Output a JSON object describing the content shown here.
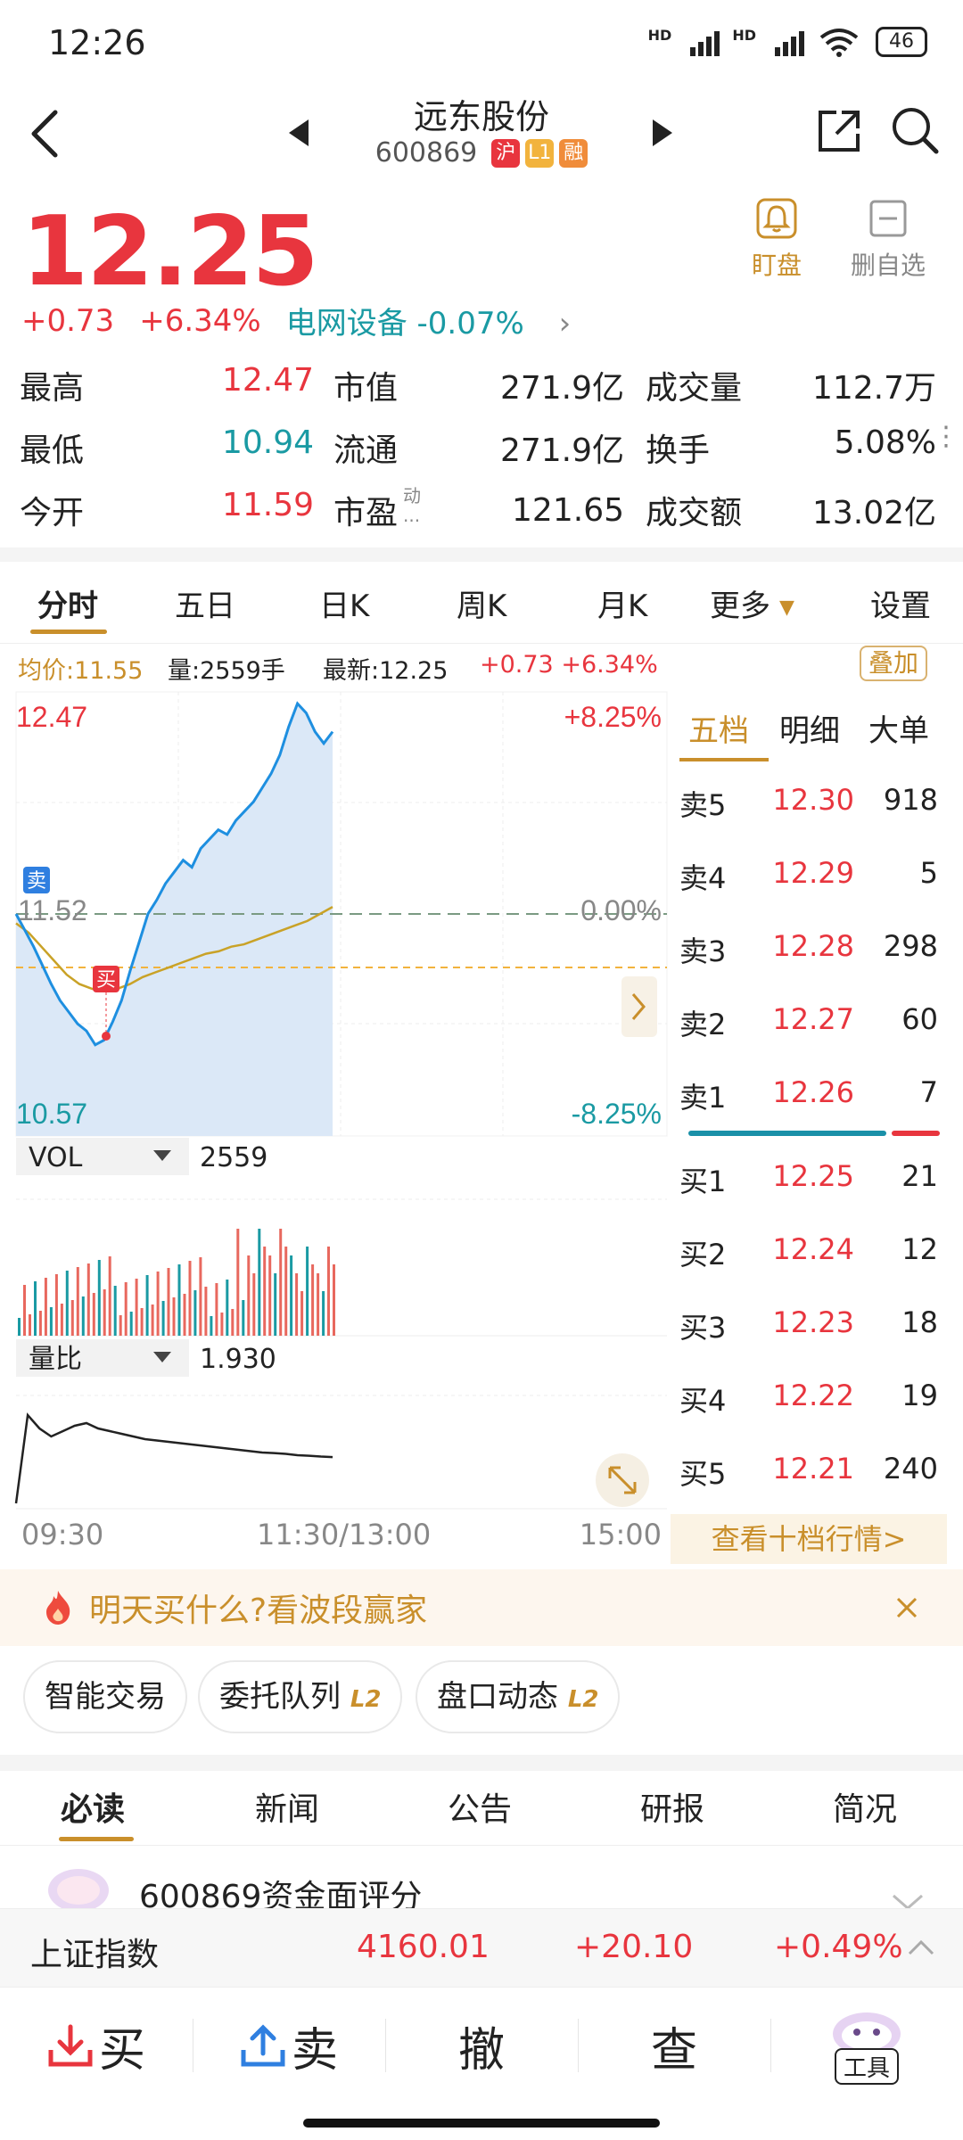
{
  "status_bar": {
    "time": "12:26",
    "network_1": "HD",
    "network_2": "HD",
    "battery": "46"
  },
  "header": {
    "stock_name": "远东股份",
    "stock_code": "600869",
    "tags": [
      {
        "text": "沪",
        "color": "#e8353e"
      },
      {
        "text": "L1",
        "color": "#f2b33d"
      },
      {
        "text": "融",
        "color": "#f08c3a"
      }
    ]
  },
  "quote": {
    "price": "12.25",
    "change": "+0.73",
    "change_pct": "+6.34%",
    "sector": "电网设备 -0.07%",
    "watch_label": "盯盘",
    "remove_label": "删自选"
  },
  "stats": [
    [
      {
        "label": "最高",
        "value": "12.47",
        "color": "red"
      },
      {
        "label": "市值",
        "value": "271.9亿"
      },
      {
        "label": "成交量",
        "value": "112.7万"
      }
    ],
    [
      {
        "label": "最低",
        "value": "10.94",
        "color": "green"
      },
      {
        "label": "流通",
        "value": "271.9亿"
      },
      {
        "label": "换手",
        "value": "5.08%"
      }
    ],
    [
      {
        "label": "今开",
        "value": "11.59",
        "color": "red"
      },
      {
        "label": "市盈",
        "value": "121.65",
        "sup": "动",
        "sub": "..."
      },
      {
        "label": "成交额",
        "value": "13.02亿"
      }
    ]
  ],
  "chart_tabs": [
    "分时",
    "五日",
    "日K",
    "周K",
    "月K",
    "更多",
    "设置"
  ],
  "chart_info": {
    "avg": "均价:11.55",
    "vol": "量:2559手",
    "latest": "最新:12.25",
    "change": "+0.73 +6.34%",
    "overlay": "叠加",
    "y_high": "12.47",
    "y_mid": "11.52",
    "y_low": "10.57",
    "pct_high": "+8.25%",
    "pct_mid": "0.00%",
    "pct_low": "-8.25%",
    "sell_marker": "卖",
    "buy_marker": "买",
    "vol_label": "VOL",
    "vol_value": "2559",
    "ratio_label": "量比",
    "ratio_value": "1.930",
    "time_start": "09:30",
    "time_mid": "11:30/13:00",
    "time_end": "15:00"
  },
  "chart_data": {
    "type": "line",
    "x_range": [
      "09:30",
      "15:00"
    ],
    "ylim": [
      10.57,
      12.47
    ],
    "reference": 11.52,
    "series": [
      {
        "name": "",
        "values": [
          11.52,
          11.45,
          11.38,
          11.3,
          11.22,
          11.15,
          11.1,
          11.05,
          11.02,
          10.96,
          10.98,
          11.06,
          11.15,
          11.28,
          11.4,
          11.52,
          11.58,
          11.65,
          11.7,
          11.75,
          11.72,
          11.8,
          11.84,
          11.88,
          11.86,
          11.92,
          11.96,
          12.0,
          12.06,
          12.12,
          12.2,
          12.32,
          12.42,
          12.38,
          12.3,
          12.25,
          12.3
        ]
      },
      {
        "name": "",
        "values": [
          11.48,
          11.44,
          11.38,
          11.32,
          11.26,
          11.22,
          11.2,
          11.19,
          11.2,
          11.22,
          11.25,
          11.27,
          11.29,
          11.31,
          11.33,
          11.35,
          11.36,
          11.38,
          11.39,
          11.41,
          11.43,
          11.45,
          11.47,
          11.49,
          11.52,
          11.55
        ]
      }
    ]
  },
  "order_book": {
    "tabs": [
      "五档",
      "明细",
      "大单"
    ],
    "asks": [
      {
        "label": "卖5",
        "price": "12.30",
        "vol": "918"
      },
      {
        "label": "卖4",
        "price": "12.29",
        "vol": "5"
      },
      {
        "label": "卖3",
        "price": "12.28",
        "vol": "298"
      },
      {
        "label": "卖2",
        "price": "12.27",
        "vol": "60"
      },
      {
        "label": "卖1",
        "price": "12.26",
        "vol": "7"
      }
    ],
    "bids": [
      {
        "label": "买1",
        "price": "12.25",
        "vol": "21"
      },
      {
        "label": "买2",
        "price": "12.24",
        "vol": "12"
      },
      {
        "label": "买3",
        "price": "12.23",
        "vol": "18"
      },
      {
        "label": "买4",
        "price": "12.22",
        "vol": "19"
      },
      {
        "label": "买5",
        "price": "12.21",
        "vol": "240"
      }
    ],
    "more_button": "查看十档行情>"
  },
  "promo": {
    "text": "明天买什么?看波段赢家"
  },
  "tools": [
    {
      "text": "智能交易",
      "badge": ""
    },
    {
      "text": "委托队列",
      "badge": "L2"
    },
    {
      "text": "盘口动态",
      "badge": "L2"
    }
  ],
  "news_tabs": [
    "必读",
    "新闻",
    "公告",
    "研报",
    "简况"
  ],
  "news_peek": "600869资金面评分",
  "index_bar": {
    "name": "上证指数",
    "value": "4160.01",
    "change": "+20.10",
    "pct": "+0.49%"
  },
  "bottom_bar": {
    "buy": "买",
    "sell": "卖",
    "cancel": "撤",
    "query": "查",
    "tools": "工具"
  }
}
